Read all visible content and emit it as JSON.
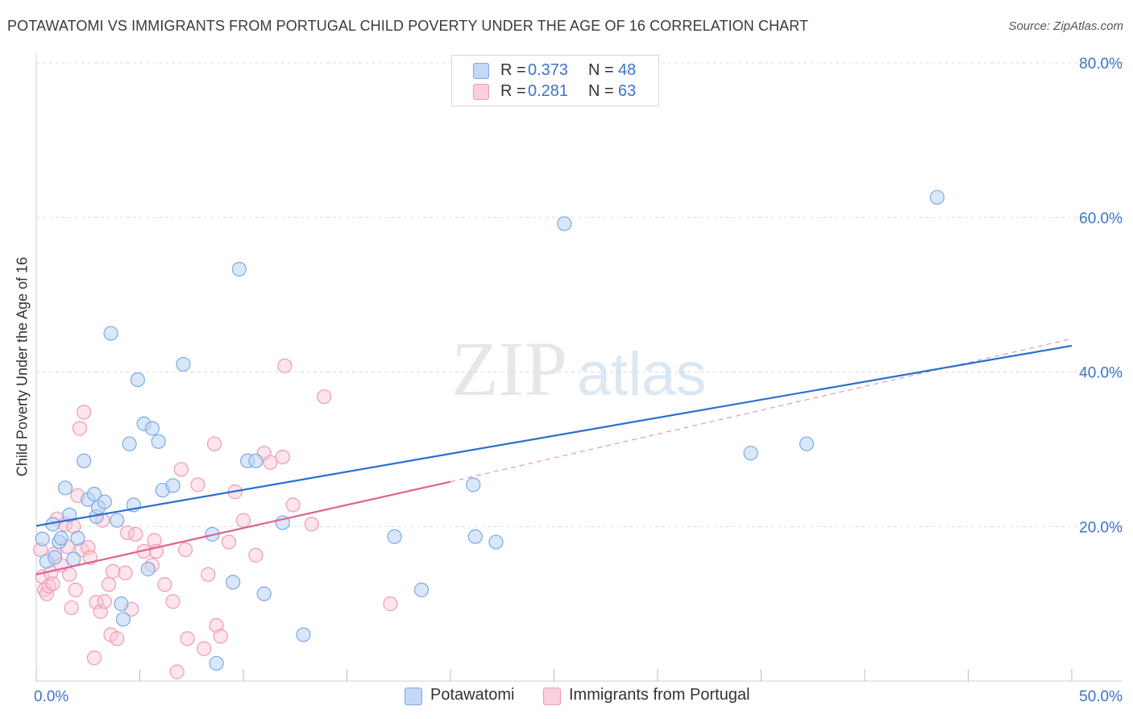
{
  "title": "POTAWATOMI VS IMMIGRANTS FROM PORTUGAL CHILD POVERTY UNDER THE AGE OF 16 CORRELATION CHART",
  "source": "Source: ZipAtlas.com",
  "watermark": {
    "zip": "ZIP",
    "atlas": "atlas"
  },
  "legend": {
    "rows": [
      {
        "r_label": "R =",
        "r_value": "0.373",
        "n_label": "N =",
        "n_value": "48",
        "color": "#a8c8f0"
      },
      {
        "r_label": "R =",
        "r_value": "0.281",
        "n_label": "N =",
        "n_value": "63",
        "color": "#f8bccd"
      }
    ],
    "bottom": [
      "Potawatomi",
      "Immigrants from Portugal"
    ]
  },
  "chart_data": {
    "type": "scatter",
    "title": "POTAWATOMI VS IMMIGRANTS FROM PORTUGAL CHILD POVERTY UNDER THE AGE OF 16 CORRELATION CHART",
    "xlabel": "",
    "ylabel": "Child Poverty Under the Age of 16",
    "xlim": [
      0,
      50
    ],
    "ylim": [
      0,
      80
    ],
    "x_tick_labels": [
      "0.0%",
      "50.0%"
    ],
    "y_tick_labels": [
      "20.0%",
      "40.0%",
      "60.0%",
      "80.0%"
    ],
    "y_ticks": [
      20,
      40,
      60,
      80
    ],
    "series": [
      {
        "name": "Potawatomi",
        "color": "#7aaae8",
        "fill": "#b9d3f3",
        "line_color": "#2a6fd0",
        "r": 0.373,
        "n": 48,
        "trend": {
          "x0": 0,
          "y0": 20.1,
          "x1": 50,
          "y1": 43.4,
          "dashed_extension": false
        },
        "points": [
          [
            0.3,
            18.4
          ],
          [
            0.5,
            15.5
          ],
          [
            0.8,
            20.3
          ],
          [
            0.9,
            16.0
          ],
          [
            1.1,
            18.0
          ],
          [
            1.2,
            18.5
          ],
          [
            1.4,
            25.0
          ],
          [
            1.6,
            21.5
          ],
          [
            1.8,
            15.8
          ],
          [
            2.0,
            18.5
          ],
          [
            2.3,
            28.5
          ],
          [
            2.5,
            23.5
          ],
          [
            2.8,
            24.2
          ],
          [
            2.9,
            21.3
          ],
          [
            3.0,
            22.5
          ],
          [
            3.3,
            23.2
          ],
          [
            3.6,
            45.0
          ],
          [
            3.9,
            20.8
          ],
          [
            4.1,
            10.0
          ],
          [
            4.2,
            8.0
          ],
          [
            4.5,
            30.7
          ],
          [
            4.7,
            22.8
          ],
          [
            4.9,
            39.0
          ],
          [
            5.2,
            33.3
          ],
          [
            5.4,
            14.5
          ],
          [
            5.6,
            32.7
          ],
          [
            5.9,
            31.0
          ],
          [
            6.1,
            24.7
          ],
          [
            6.6,
            25.3
          ],
          [
            7.1,
            41.0
          ],
          [
            8.5,
            19.0
          ],
          [
            8.7,
            2.3
          ],
          [
            9.5,
            12.8
          ],
          [
            9.8,
            53.3
          ],
          [
            10.2,
            28.5
          ],
          [
            10.6,
            28.5
          ],
          [
            11.0,
            11.3
          ],
          [
            11.9,
            20.5
          ],
          [
            12.9,
            6.0
          ],
          [
            17.3,
            18.7
          ],
          [
            18.6,
            11.8
          ],
          [
            21.1,
            25.4
          ],
          [
            21.2,
            18.7
          ],
          [
            22.2,
            18.0
          ],
          [
            25.5,
            59.2
          ],
          [
            34.5,
            29.5
          ],
          [
            37.2,
            30.7
          ],
          [
            43.5,
            62.6
          ]
        ]
      },
      {
        "name": "Immigrants from Portugal",
        "color": "#f09ab5",
        "fill": "#f9c6d5",
        "line_color": "#e0628f",
        "r": 0.281,
        "n": 63,
        "trend": {
          "x0": 0,
          "y0": 13.8,
          "x1": 20,
          "y1": 25.8,
          "dashed_to_x": 50,
          "dashed_to_y": 44.3
        },
        "points": [
          [
            0.2,
            17.0
          ],
          [
            0.3,
            13.5
          ],
          [
            0.4,
            11.8
          ],
          [
            0.5,
            11.3
          ],
          [
            0.6,
            12.3
          ],
          [
            0.7,
            14.0
          ],
          [
            0.9,
            16.5
          ],
          [
            1.0,
            21.0
          ],
          [
            1.2,
            15.0
          ],
          [
            1.4,
            20.3
          ],
          [
            1.6,
            13.8
          ],
          [
            1.7,
            9.5
          ],
          [
            1.8,
            20.0
          ],
          [
            1.9,
            11.8
          ],
          [
            2.0,
            24.0
          ],
          [
            2.1,
            32.7
          ],
          [
            2.2,
            17.0
          ],
          [
            2.3,
            34.8
          ],
          [
            2.5,
            17.3
          ],
          [
            2.8,
            3.0
          ],
          [
            2.9,
            10.2
          ],
          [
            3.1,
            9.0
          ],
          [
            3.2,
            20.8
          ],
          [
            3.5,
            12.5
          ],
          [
            3.6,
            6.0
          ],
          [
            3.7,
            14.2
          ],
          [
            3.9,
            5.5
          ],
          [
            4.3,
            14.0
          ],
          [
            4.4,
            19.2
          ],
          [
            4.6,
            9.3
          ],
          [
            4.8,
            19.0
          ],
          [
            5.2,
            16.8
          ],
          [
            5.6,
            15.0
          ],
          [
            5.7,
            18.2
          ],
          [
            5.8,
            16.8
          ],
          [
            6.2,
            12.5
          ],
          [
            6.6,
            10.3
          ],
          [
            6.8,
            1.2
          ],
          [
            7.0,
            27.4
          ],
          [
            7.2,
            17.0
          ],
          [
            7.3,
            5.5
          ],
          [
            7.8,
            25.4
          ],
          [
            8.1,
            4.2
          ],
          [
            8.3,
            13.8
          ],
          [
            8.6,
            30.7
          ],
          [
            8.7,
            7.2
          ],
          [
            8.9,
            5.8
          ],
          [
            9.3,
            18.0
          ],
          [
            9.6,
            24.5
          ],
          [
            10.0,
            20.8
          ],
          [
            10.6,
            16.3
          ],
          [
            11.0,
            29.5
          ],
          [
            11.3,
            28.3
          ],
          [
            11.9,
            29.0
          ],
          [
            12.0,
            40.8
          ],
          [
            12.4,
            22.8
          ],
          [
            13.3,
            20.3
          ],
          [
            13.9,
            36.8
          ],
          [
            17.1,
            10.0
          ],
          [
            0.8,
            12.6
          ],
          [
            1.5,
            17.4
          ],
          [
            2.6,
            16.0
          ],
          [
            3.3,
            10.3
          ]
        ]
      }
    ]
  }
}
